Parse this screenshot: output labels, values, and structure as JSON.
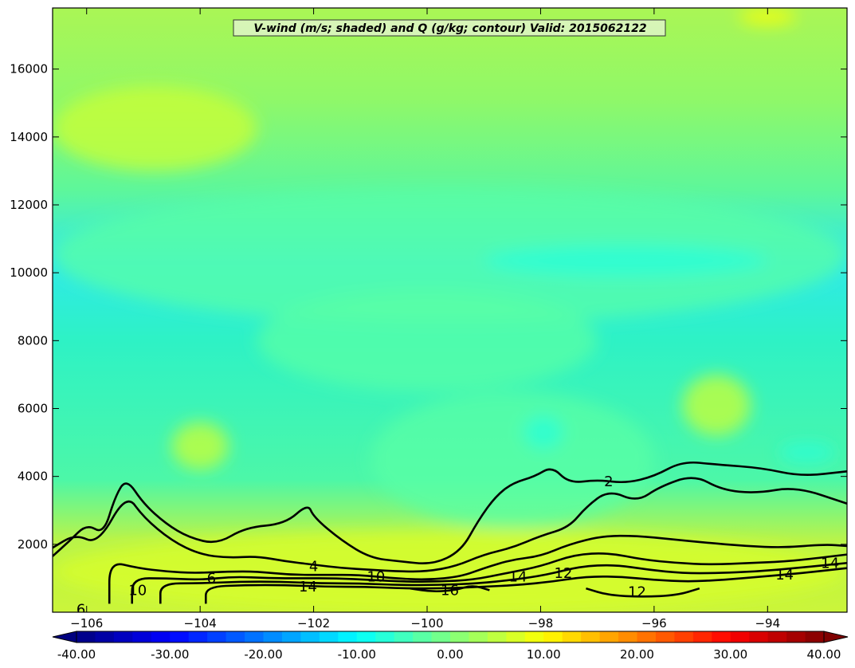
{
  "chart_data": {
    "type": "contour",
    "title": "V-wind (m/s; shaded) and Q (g/kg; contour) Valid: 2015062122",
    "xlabel": "",
    "ylabel": "",
    "xlim": [
      -106.6,
      -92.6
    ],
    "ylim": [
      0,
      17800
    ],
    "x_ticks": [
      {
        "value": -106,
        "label": "−106"
      },
      {
        "value": -104,
        "label": "−104"
      },
      {
        "value": -102,
        "label": "−102"
      },
      {
        "value": -100,
        "label": "−100"
      },
      {
        "value": -98,
        "label": "−98"
      },
      {
        "value": -96,
        "label": "−96"
      },
      {
        "value": -94,
        "label": "−94"
      }
    ],
    "y_ticks": [
      {
        "value": 2000,
        "label": "2000"
      },
      {
        "value": 4000,
        "label": "4000"
      },
      {
        "value": 6000,
        "label": "6000"
      },
      {
        "value": 8000,
        "label": "8000"
      },
      {
        "value": 10000,
        "label": "10000"
      },
      {
        "value": 12000,
        "label": "12000"
      },
      {
        "value": 14000,
        "label": "14000"
      },
      {
        "value": 16000,
        "label": "16000"
      }
    ],
    "shaded_field": {
      "name": "V-wind",
      "units": "m/s",
      "range": [
        -40,
        40
      ],
      "colorbar_ticks": [
        {
          "value": -40,
          "label": "-40.00"
        },
        {
          "value": -30,
          "label": "-30.00"
        },
        {
          "value": -20,
          "label": "-20.00"
        },
        {
          "value": -10,
          "label": "-10.00"
        },
        {
          "value": 0,
          "label": "0.00"
        },
        {
          "value": 10,
          "label": "10.00"
        },
        {
          "value": 20,
          "label": "20.00"
        },
        {
          "value": 30,
          "label": "30.00"
        },
        {
          "value": 40,
          "label": "40.00"
        }
      ],
      "colormap": [
        "#00007f",
        "#0000ff",
        "#007fff",
        "#00ffff",
        "#7fff7f",
        "#ffff00",
        "#ff7f00",
        "#ff0000",
        "#7f0000"
      ],
      "regions": [
        {
          "value": 3,
          "x": [
            -106.6,
            -92.6
          ],
          "y": [
            0,
            17800
          ]
        },
        {
          "value": -3,
          "x": [
            -106.6,
            -92.6
          ],
          "y": [
            8500,
            12500
          ]
        },
        {
          "value": -3,
          "x": [
            -101,
            -96
          ],
          "y": [
            2500,
            6500
          ]
        },
        {
          "value": -3,
          "x": [
            -103,
            -97
          ],
          "y": [
            6500,
            9500
          ]
        },
        {
          "value": -7,
          "x": [
            -99,
            -94
          ],
          "y": [
            9900,
            10800
          ]
        },
        {
          "value": -7,
          "x": [
            -98.3,
            -97.6
          ],
          "y": [
            4800,
            5800
          ]
        },
        {
          "value": -7,
          "x": [
            -93.8,
            -92.8
          ],
          "y": [
            4400,
            5000
          ]
        },
        {
          "value": 7,
          "x": [
            -106.6,
            -92.6
          ],
          "y": [
            0,
            2400
          ]
        },
        {
          "value": 6,
          "x": [
            -106.6,
            -103
          ],
          "y": [
            13000,
            15500
          ]
        },
        {
          "value": 6,
          "x": [
            -95.5,
            -94.3
          ],
          "y": [
            5200,
            7000
          ]
        },
        {
          "value": 6,
          "x": [
            -104.5,
            -103.5
          ],
          "y": [
            4200,
            5600
          ]
        },
        {
          "value": 10,
          "x": [
            -94.5,
            -93.5
          ],
          "y": [
            17300,
            17800
          ]
        }
      ]
    },
    "contour_field": {
      "name": "Q",
      "units": "g/kg",
      "contour_labels": [
        {
          "text": "2",
          "x": -96.8,
          "y": 3850
        },
        {
          "text": "4",
          "x": -102.0,
          "y": 1350
        },
        {
          "text": "6",
          "x": -103.8,
          "y": 1000
        },
        {
          "text": "10",
          "x": -105.1,
          "y": 650
        },
        {
          "text": "10",
          "x": -100.9,
          "y": 1050
        },
        {
          "text": "12",
          "x": -97.6,
          "y": 1150
        },
        {
          "text": "12",
          "x": -96.3,
          "y": 600
        },
        {
          "text": "14",
          "x": -102.1,
          "y": 750
        },
        {
          "text": "14",
          "x": -98.4,
          "y": 1050
        },
        {
          "text": "14",
          "x": -93.7,
          "y": 1100
        },
        {
          "text": "14",
          "x": -92.9,
          "y": 1450
        },
        {
          "text": "16",
          "x": -99.6,
          "y": 650
        },
        {
          "text": "6",
          "x": -106.1,
          "y": 80
        }
      ],
      "lines": [
        {
          "value": 2,
          "points": [
            [
              -106.6,
              1650
            ],
            [
              -106.3,
              2100
            ],
            [
              -106.0,
              2600
            ],
            [
              -105.7,
              2300
            ],
            [
              -105.5,
              3400
            ],
            [
              -105.3,
              3950
            ],
            [
              -105.0,
              3200
            ],
            [
              -104.6,
              2600
            ],
            [
              -104.2,
              2200
            ],
            [
              -103.7,
              2000
            ],
            [
              -103.2,
              2500
            ],
            [
              -102.5,
              2600
            ],
            [
              -102.1,
              3200
            ],
            [
              -102.0,
              2800
            ],
            [
              -101.5,
              2100
            ],
            [
              -101.0,
              1600
            ],
            [
              -100.5,
              1500
            ],
            [
              -99.9,
              1400
            ],
            [
              -99.4,
              1800
            ],
            [
              -99.1,
              2700
            ],
            [
              -98.8,
              3400
            ],
            [
              -98.5,
              3800
            ],
            [
              -98.1,
              4000
            ],
            [
              -97.8,
              4300
            ],
            [
              -97.5,
              3800
            ],
            [
              -97.0,
              3900
            ],
            [
              -96.5,
              3800
            ],
            [
              -96.0,
              4000
            ],
            [
              -95.5,
              4450
            ],
            [
              -94.9,
              4350
            ],
            [
              -94.1,
              4250
            ],
            [
              -93.4,
              4000
            ],
            [
              -92.6,
              4150
            ]
          ]
        },
        {
          "value": 4,
          "points": [
            [
              -106.6,
              1900
            ],
            [
              -106.2,
              2300
            ],
            [
              -105.8,
              2000
            ],
            [
              -105.3,
              3500
            ],
            [
              -105.0,
              2800
            ],
            [
              -104.5,
              2100
            ],
            [
              -104.0,
              1700
            ],
            [
              -103.5,
              1600
            ],
            [
              -103.0,
              1650
            ],
            [
              -102.5,
              1500
            ],
            [
              -102.0,
              1400
            ],
            [
              -101.5,
              1300
            ],
            [
              -101.0,
              1250
            ],
            [
              -100.5,
              1200
            ],
            [
              -100.0,
              1200
            ],
            [
              -99.5,
              1350
            ],
            [
              -99.0,
              1700
            ],
            [
              -98.5,
              1900
            ],
            [
              -98.0,
              2250
            ],
            [
              -97.5,
              2500
            ],
            [
              -97.2,
              3100
            ],
            [
              -96.8,
              3600
            ],
            [
              -96.3,
              3250
            ],
            [
              -95.9,
              3700
            ],
            [
              -95.3,
              4050
            ],
            [
              -94.8,
              3600
            ],
            [
              -94.2,
              3500
            ],
            [
              -93.5,
              3700
            ],
            [
              -92.6,
              3200
            ]
          ]
        },
        {
          "value": 6,
          "points": [
            [
              -105.6,
              250
            ],
            [
              -105.6,
              1500
            ],
            [
              -105.1,
              1300
            ],
            [
              -104.6,
              1200
            ],
            [
              -104.1,
              1150
            ],
            [
              -103.5,
              1200
            ],
            [
              -103.0,
              1200
            ],
            [
              -102.4,
              1100
            ],
            [
              -101.8,
              1100
            ],
            [
              -101.2,
              1100
            ],
            [
              -100.6,
              1000
            ],
            [
              -100.0,
              950
            ],
            [
              -99.4,
              1050
            ],
            [
              -99.0,
              1300
            ],
            [
              -98.5,
              1550
            ],
            [
              -98.0,
              1650
            ],
            [
              -97.5,
              2000
            ],
            [
              -96.9,
              2250
            ],
            [
              -96.3,
              2250
            ],
            [
              -95.7,
              2150
            ],
            [
              -95.1,
              2050
            ],
            [
              -94.4,
              1950
            ],
            [
              -93.7,
              1900
            ],
            [
              -93.0,
              2000
            ],
            [
              -92.6,
              1950
            ]
          ]
        },
        {
          "value": 10,
          "points": [
            [
              -105.2,
              250
            ],
            [
              -105.2,
              1000
            ],
            [
              -104.6,
              1000
            ],
            [
              -104.0,
              950
            ],
            [
              -103.4,
              1050
            ],
            [
              -102.8,
              1000
            ],
            [
              -102.2,
              1000
            ],
            [
              -101.6,
              1000
            ],
            [
              -101.0,
              950
            ],
            [
              -100.4,
              900
            ],
            [
              -99.8,
              900
            ],
            [
              -99.2,
              950
            ],
            [
              -98.6,
              1150
            ],
            [
              -98.0,
              1350
            ],
            [
              -97.4,
              1700
            ],
            [
              -96.8,
              1750
            ],
            [
              -96.2,
              1550
            ],
            [
              -95.6,
              1450
            ],
            [
              -95.0,
              1400
            ],
            [
              -94.3,
              1450
            ],
            [
              -93.6,
              1500
            ],
            [
              -92.6,
              1700
            ]
          ]
        },
        {
          "value": 12,
          "points": [
            [
              -104.7,
              250
            ],
            [
              -104.7,
              850
            ],
            [
              -104.0,
              850
            ],
            [
              -103.3,
              900
            ],
            [
              -102.6,
              900
            ],
            [
              -101.9,
              850
            ],
            [
              -101.2,
              850
            ],
            [
              -100.5,
              800
            ],
            [
              -99.8,
              800
            ],
            [
              -99.1,
              850
            ],
            [
              -98.5,
              950
            ],
            [
              -97.9,
              1100
            ],
            [
              -97.3,
              1350
            ],
            [
              -96.7,
              1400
            ],
            [
              -96.1,
              1250
            ],
            [
              -95.5,
              1150
            ],
            [
              -94.9,
              1150
            ],
            [
              -94.2,
              1200
            ],
            [
              -93.5,
              1300
            ],
            [
              -92.6,
              1450
            ]
          ]
        },
        {
          "value": 14,
          "points": [
            [
              -103.9,
              250
            ],
            [
              -103.9,
              750
            ],
            [
              -103.2,
              800
            ],
            [
              -102.5,
              800
            ],
            [
              -101.8,
              750
            ],
            [
              -101.1,
              750
            ],
            [
              -100.4,
              700
            ],
            [
              -99.7,
              700
            ],
            [
              -99.0,
              750
            ],
            [
              -98.4,
              800
            ],
            [
              -97.8,
              900
            ],
            [
              -97.2,
              1050
            ],
            [
              -96.6,
              1050
            ],
            [
              -96.0,
              950
            ],
            [
              -95.4,
              900
            ],
            [
              -94.8,
              950
            ],
            [
              -94.1,
              1050
            ],
            [
              -93.4,
              1150
            ],
            [
              -92.6,
              1300
            ]
          ]
        },
        {
          "value": 16,
          "points": [
            [
              -100.3,
              700
            ],
            [
              -99.9,
              600
            ],
            [
              -99.5,
              650
            ],
            [
              -99.2,
              800
            ],
            [
              -98.9,
              650
            ]
          ]
        },
        {
          "value": 12,
          "points": [
            [
              -97.2,
              700
            ],
            [
              -96.8,
              500
            ],
            [
              -96.2,
              450
            ],
            [
              -95.6,
              500
            ],
            [
              -95.2,
              700
            ]
          ]
        }
      ]
    }
  }
}
